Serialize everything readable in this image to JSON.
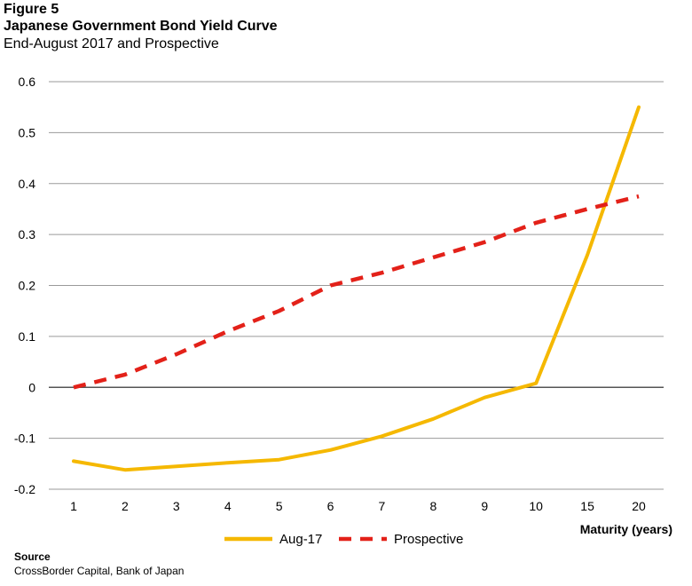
{
  "header": {
    "figure_label": "Figure 5",
    "title": "Japanese Government Bond Yield Curve",
    "subtitle": "End-August 2017 and Prospective"
  },
  "chart_data": {
    "type": "line",
    "categories": [
      "1",
      "2",
      "3",
      "4",
      "5",
      "6",
      "7",
      "8",
      "9",
      "10",
      "15",
      "20"
    ],
    "series": [
      {
        "name": "Aug-17",
        "color": "#F5B800",
        "dash": "solid",
        "values": [
          -0.145,
          -0.162,
          -0.155,
          -0.148,
          -0.142,
          -0.123,
          -0.096,
          -0.062,
          -0.02,
          0.008,
          0.26,
          0.55
        ]
      },
      {
        "name": "Prospective",
        "color": "#E32119",
        "dash": "dashed",
        "values": [
          0.0,
          0.025,
          0.065,
          0.11,
          0.15,
          0.2,
          0.225,
          0.255,
          0.285,
          0.323,
          0.35,
          0.375
        ]
      }
    ],
    "yticks": [
      "0.6",
      "0.5",
      "0.4",
      "0.3",
      "0.2",
      "0.1",
      "0",
      "-0.1",
      "-0.2"
    ],
    "ylim": [
      -0.2,
      0.6
    ],
    "xlabel": "Maturity (years)",
    "ylabel": "",
    "grid": true,
    "legend_position": "bottom"
  },
  "footer": {
    "source_label": "Source",
    "source_text": "CrossBorder Capital,  Bank of Japan"
  }
}
